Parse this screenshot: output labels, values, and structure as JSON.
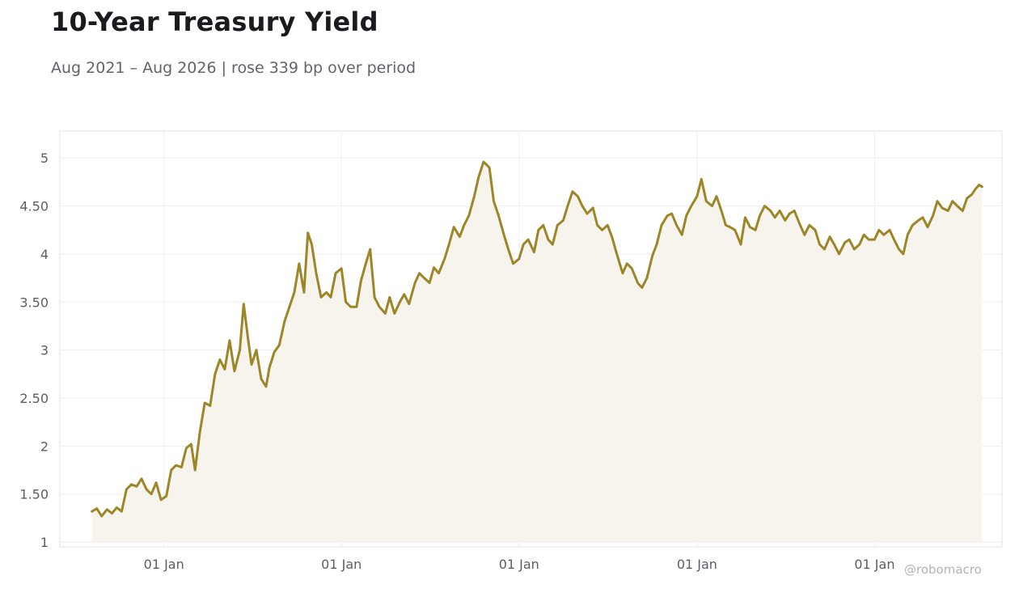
{
  "header": {
    "title": "10-Year Treasury Yield",
    "subtitle": "Aug 2021 – Aug 2026 | rose 339 bp over period"
  },
  "watermark": "@robomacro",
  "colors": {
    "line": "#9c8628",
    "fill": "#f7f4ee",
    "grid": "#eeeeee",
    "axis_text": "#5d5d66"
  },
  "chart_data": {
    "type": "line",
    "title": "10-Year Treasury Yield",
    "subtitle": "Aug 2021 – Aug 2026 | rose 339 bp over period",
    "xlabel": "",
    "ylabel": "",
    "ylim": [
      0.95,
      5.28
    ],
    "xlim": [
      "2021-06-01",
      "2026-09-20"
    ],
    "y_ticks": [
      1,
      1.5,
      2,
      2.5,
      3,
      3.5,
      4,
      4.5,
      5
    ],
    "y_tick_labels": [
      "1",
      "1.50",
      "2",
      "2.50",
      "3",
      "3.50",
      "4",
      "4.50",
      "5"
    ],
    "x_ticks": [
      "2022-01-01",
      "2023-01-01",
      "2024-01-01",
      "2025-01-01",
      "2026-01-01"
    ],
    "x_tick_labels": [
      "01 Jan",
      "01 Jan",
      "01 Jan",
      "01 Jan",
      "01 Jan"
    ],
    "grid": true,
    "area_fill": true,
    "series": [
      {
        "x": [
          "2021-08-06",
          "2021-08-16",
          "2021-08-26",
          "2021-09-06",
          "2021-09-16",
          "2021-09-26",
          "2021-10-06",
          "2021-10-16",
          "2021-10-26",
          "2021-11-06",
          "2021-11-16",
          "2021-11-26",
          "2021-12-06",
          "2021-12-16",
          "2021-12-26",
          "2022-01-06",
          "2022-01-16",
          "2022-01-26",
          "2022-02-06",
          "2022-02-16",
          "2022-02-26",
          "2022-03-06",
          "2022-03-16",
          "2022-03-26",
          "2022-04-06",
          "2022-04-16",
          "2022-04-26",
          "2022-05-06",
          "2022-05-16",
          "2022-05-26",
          "2022-06-06",
          "2022-06-14",
          "2022-06-22",
          "2022-06-30",
          "2022-07-10",
          "2022-07-20",
          "2022-07-30",
          "2022-08-06",
          "2022-08-16",
          "2022-08-26",
          "2022-09-06",
          "2022-09-16",
          "2022-09-26",
          "2022-10-06",
          "2022-10-16",
          "2022-10-24",
          "2022-11-01",
          "2022-11-10",
          "2022-11-20",
          "2022-12-01",
          "2022-12-10",
          "2022-12-20",
          "2023-01-01",
          "2023-01-10",
          "2023-01-20",
          "2023-02-01",
          "2023-02-10",
          "2023-02-20",
          "2023-03-01",
          "2023-03-10",
          "2023-03-20",
          "2023-04-01",
          "2023-04-10",
          "2023-04-20",
          "2023-05-01",
          "2023-05-10",
          "2023-05-20",
          "2023-06-01",
          "2023-06-10",
          "2023-06-20",
          "2023-07-01",
          "2023-07-10",
          "2023-07-20",
          "2023-08-01",
          "2023-08-10",
          "2023-08-20",
          "2023-09-01",
          "2023-09-10",
          "2023-09-20",
          "2023-10-01",
          "2023-10-10",
          "2023-10-20",
          "2023-11-01",
          "2023-11-10",
          "2023-11-20",
          "2023-12-01",
          "2023-12-10",
          "2023-12-20",
          "2024-01-01",
          "2024-01-10",
          "2024-01-20",
          "2024-02-01",
          "2024-02-10",
          "2024-02-20",
          "2024-03-01",
          "2024-03-10",
          "2024-03-20",
          "2024-04-01",
          "2024-04-10",
          "2024-04-20",
          "2024-05-01",
          "2024-05-10",
          "2024-05-20",
          "2024-06-01",
          "2024-06-10",
          "2024-06-20",
          "2024-07-01",
          "2024-07-10",
          "2024-07-20",
          "2024-08-01",
          "2024-08-10",
          "2024-08-20",
          "2024-09-01",
          "2024-09-10",
          "2024-09-20",
          "2024-10-01",
          "2024-10-10",
          "2024-10-20",
          "2024-11-01",
          "2024-11-10",
          "2024-11-20",
          "2024-12-01",
          "2024-12-10",
          "2024-12-20",
          "2025-01-01",
          "2025-01-10",
          "2025-01-20",
          "2025-02-01",
          "2025-02-10",
          "2025-02-20",
          "2025-03-01",
          "2025-03-10",
          "2025-03-20",
          "2025-04-01",
          "2025-04-10",
          "2025-04-20",
          "2025-05-01",
          "2025-05-10",
          "2025-05-20",
          "2025-06-01",
          "2025-06-10",
          "2025-06-20",
          "2025-07-01",
          "2025-07-10",
          "2025-07-20",
          "2025-08-01",
          "2025-08-10",
          "2025-08-20",
          "2025-09-01",
          "2025-09-10",
          "2025-09-20",
          "2025-10-01",
          "2025-10-10",
          "2025-10-20",
          "2025-11-01",
          "2025-11-10",
          "2025-11-20",
          "2025-12-01",
          "2025-12-10",
          "2025-12-20",
          "2026-01-01",
          "2026-01-10",
          "2026-01-20",
          "2026-02-01",
          "2026-02-10",
          "2026-02-20",
          "2026-03-01",
          "2026-03-10",
          "2026-03-20",
          "2026-04-01",
          "2026-04-10",
          "2026-04-20",
          "2026-05-01",
          "2026-05-10",
          "2026-05-20",
          "2026-06-01",
          "2026-06-10",
          "2026-06-20",
          "2026-07-01",
          "2026-07-10",
          "2026-07-20",
          "2026-07-28",
          "2026-08-04",
          "2026-08-10"
        ],
        "y": [
          1.32,
          1.35,
          1.27,
          1.34,
          1.3,
          1.36,
          1.32,
          1.55,
          1.6,
          1.58,
          1.66,
          1.55,
          1.5,
          1.62,
          1.44,
          1.48,
          1.75,
          1.8,
          1.78,
          1.98,
          2.02,
          1.75,
          2.15,
          2.45,
          2.42,
          2.75,
          2.9,
          2.8,
          3.1,
          2.78,
          3.0,
          3.48,
          3.15,
          2.85,
          3.0,
          2.7,
          2.62,
          2.82,
          2.98,
          3.05,
          3.3,
          3.45,
          3.6,
          3.9,
          3.6,
          4.22,
          4.1,
          3.8,
          3.55,
          3.6,
          3.55,
          3.8,
          3.85,
          3.5,
          3.45,
          3.45,
          3.72,
          3.9,
          4.05,
          3.55,
          3.45,
          3.38,
          3.55,
          3.38,
          3.5,
          3.58,
          3.48,
          3.7,
          3.8,
          3.75,
          3.7,
          3.86,
          3.8,
          3.95,
          4.1,
          4.28,
          4.18,
          4.3,
          4.4,
          4.6,
          4.8,
          4.96,
          4.9,
          4.55,
          4.4,
          4.2,
          4.05,
          3.9,
          3.95,
          4.1,
          4.15,
          4.02,
          4.25,
          4.3,
          4.15,
          4.1,
          4.3,
          4.35,
          4.5,
          4.65,
          4.6,
          4.5,
          4.42,
          4.48,
          4.3,
          4.25,
          4.3,
          4.18,
          4.0,
          3.8,
          3.9,
          3.85,
          3.7,
          3.65,
          3.75,
          3.98,
          4.1,
          4.3,
          4.4,
          4.42,
          4.3,
          4.2,
          4.4,
          4.5,
          4.6,
          4.78,
          4.55,
          4.5,
          4.6,
          4.45,
          4.3,
          4.28,
          4.25,
          4.1,
          4.38,
          4.28,
          4.25,
          4.4,
          4.5,
          4.45,
          4.38,
          4.45,
          4.35,
          4.42,
          4.45,
          4.3,
          4.2,
          4.3,
          4.25,
          4.1,
          4.05,
          4.18,
          4.1,
          4.0,
          4.12,
          4.15,
          4.05,
          4.1,
          4.2,
          4.15,
          4.15,
          4.25,
          4.2,
          4.25,
          4.15,
          4.05,
          4.0,
          4.2,
          4.3,
          4.35,
          4.38,
          4.28,
          4.4,
          4.55,
          4.48,
          4.45,
          4.55,
          4.5,
          4.45,
          4.58,
          4.62,
          4.68,
          4.72,
          4.7
        ]
      }
    ]
  }
}
